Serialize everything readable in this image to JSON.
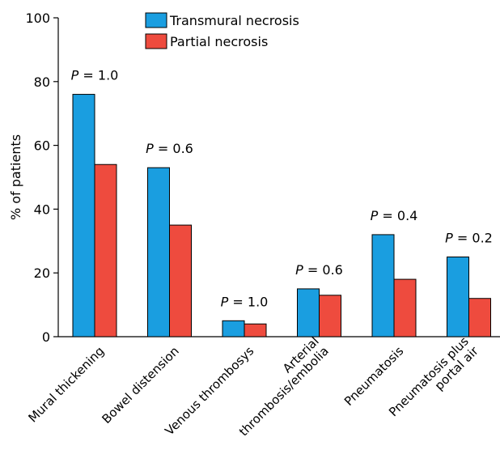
{
  "chart_data": {
    "type": "bar",
    "ylabel": "% of patients",
    "ylim": [
      0,
      100
    ],
    "yticks": [
      0,
      20,
      40,
      60,
      80,
      100
    ],
    "grid": false,
    "legend_position": "top-center",
    "categories": [
      [
        "Mural thickening"
      ],
      [
        "Bowel distension"
      ],
      [
        "Venous thrombosys"
      ],
      [
        "Arterial",
        "thrombosis/embolia"
      ],
      [
        "Pneumatosis"
      ],
      [
        "Pneumatosis plus",
        "portal air"
      ]
    ],
    "series": [
      {
        "name": "Transmural necrosis",
        "color": "#1a9ee0",
        "values": [
          76,
          53,
          5,
          15,
          32,
          25
        ]
      },
      {
        "name": "Partial necrosis",
        "color": "#ee4b3e",
        "values": [
          54,
          35,
          4,
          13,
          18,
          12
        ]
      }
    ],
    "p_values": [
      "1.0",
      "0.6",
      "1.0",
      "0.6",
      "0.4",
      "0.2"
    ],
    "p_label": "P",
    "p_separator": " = "
  }
}
